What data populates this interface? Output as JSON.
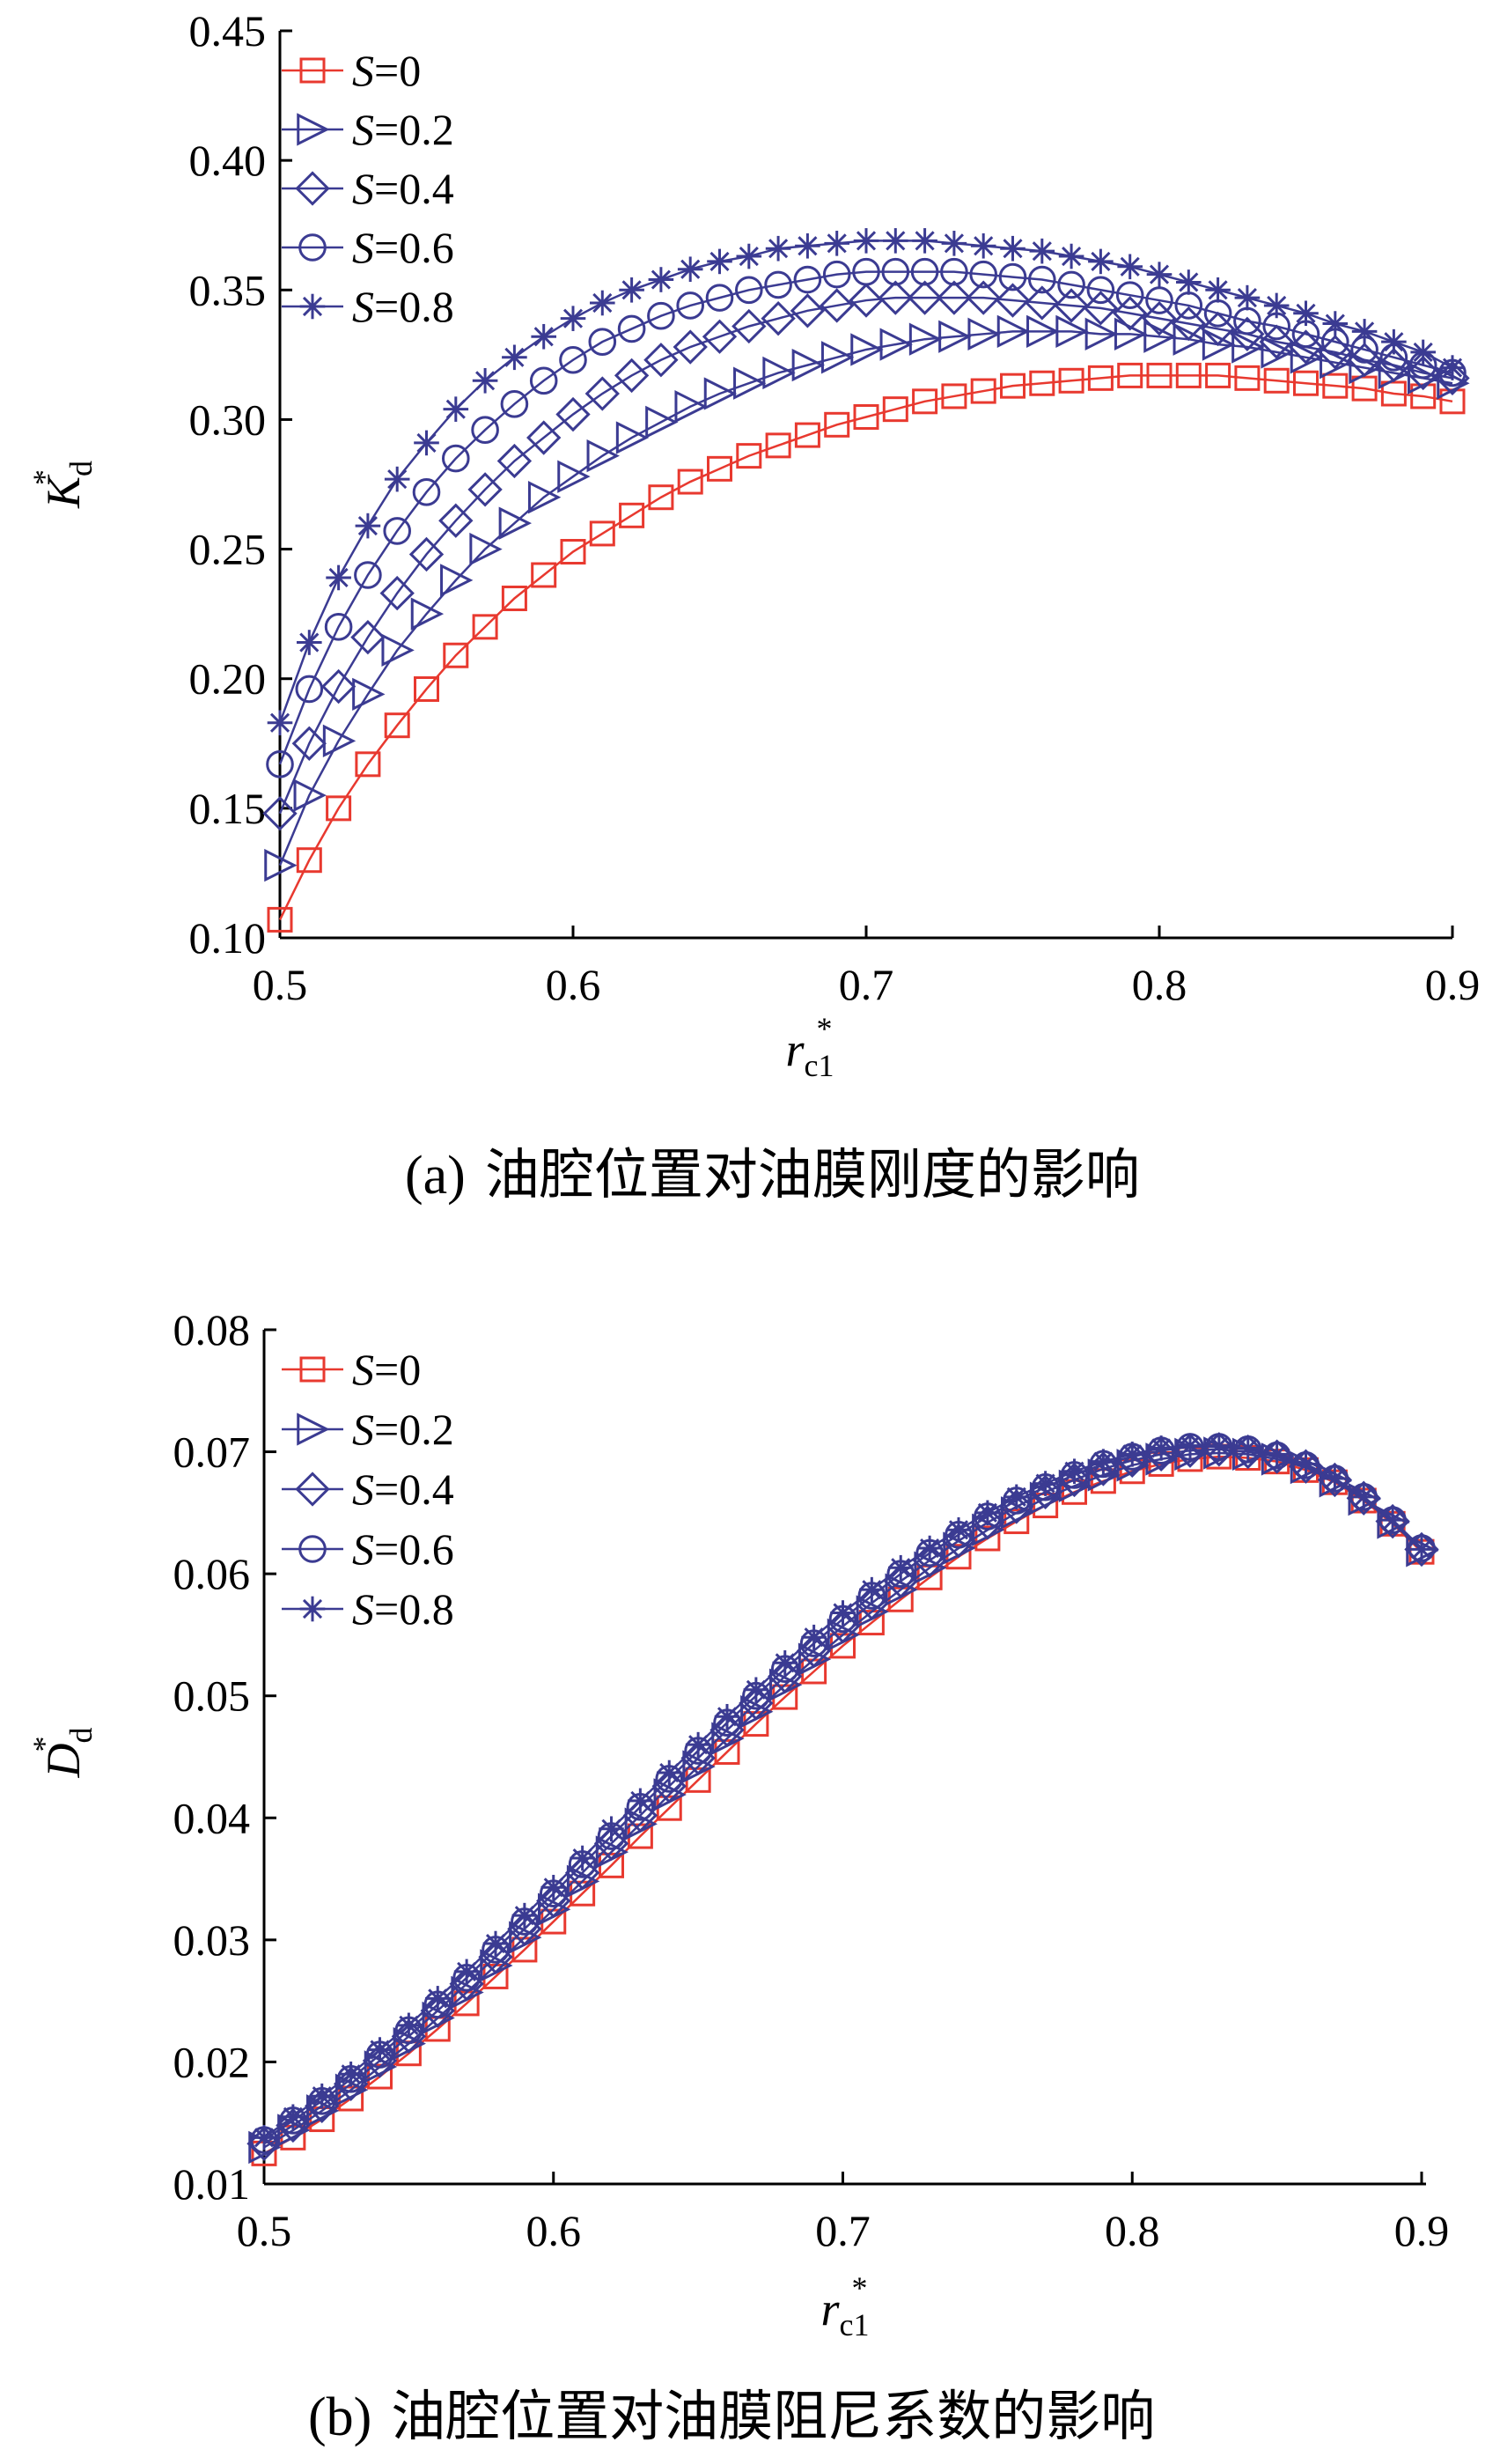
{
  "chart_data": [
    {
      "type": "line",
      "panel_label": "(a)",
      "caption": "油腔位置对油膜刚度的影响",
      "xlabel": {
        "symbol": "r",
        "sub": "c1",
        "sup": "*"
      },
      "ylabel": {
        "symbol": "K",
        "sub": "d",
        "sup": "*"
      },
      "xlim": [
        0.5,
        0.9
      ],
      "ylim": [
        0.1,
        0.45
      ],
      "xticks": [
        "0.5",
        "0.6",
        "0.7",
        "0.8",
        "0.9"
      ],
      "yticks": [
        "0.10",
        "0.15",
        "0.20",
        "0.25",
        "0.30",
        "0.35",
        "0.40",
        "0.45"
      ],
      "grid": false,
      "legend_position": "top-left",
      "x": [
        0.5,
        0.51,
        0.52,
        0.53,
        0.54,
        0.55,
        0.56,
        0.57,
        0.58,
        0.59,
        0.6,
        0.61,
        0.62,
        0.63,
        0.64,
        0.65,
        0.66,
        0.67,
        0.68,
        0.69,
        0.7,
        0.71,
        0.72,
        0.73,
        0.74,
        0.75,
        0.76,
        0.77,
        0.78,
        0.79,
        0.8,
        0.81,
        0.82,
        0.83,
        0.84,
        0.85,
        0.86,
        0.87,
        0.88,
        0.89,
        0.9
      ],
      "series": [
        {
          "name": "S=0",
          "label_var": "S",
          "label_val": "=0",
          "marker": "square",
          "color": "#e8392f",
          "values": [
            0.107,
            0.13,
            0.15,
            0.167,
            0.182,
            0.196,
            0.209,
            0.22,
            0.231,
            0.24,
            0.249,
            0.256,
            0.263,
            0.27,
            0.276,
            0.281,
            0.286,
            0.29,
            0.294,
            0.298,
            0.301,
            0.304,
            0.307,
            0.309,
            0.311,
            0.313,
            0.314,
            0.315,
            0.316,
            0.317,
            0.317,
            0.317,
            0.317,
            0.316,
            0.315,
            0.314,
            0.313,
            0.312,
            0.31,
            0.309,
            0.307
          ]
        },
        {
          "name": "S=0.2",
          "label_var": "S",
          "label_val": "=0.2",
          "marker": "triangle-right",
          "color": "#3b3b92",
          "values": [
            0.128,
            0.155,
            0.176,
            0.194,
            0.211,
            0.225,
            0.238,
            0.25,
            0.26,
            0.27,
            0.278,
            0.286,
            0.293,
            0.299,
            0.305,
            0.31,
            0.314,
            0.318,
            0.321,
            0.324,
            0.327,
            0.329,
            0.331,
            0.332,
            0.333,
            0.334,
            0.334,
            0.334,
            0.333,
            0.333,
            0.332,
            0.331,
            0.329,
            0.328,
            0.326,
            0.324,
            0.322,
            0.32,
            0.318,
            0.316,
            0.314
          ]
        },
        {
          "name": "S=0.4",
          "label_var": "S",
          "label_val": "=0.4",
          "marker": "diamond",
          "color": "#3b3b92",
          "values": [
            0.148,
            0.175,
            0.197,
            0.216,
            0.233,
            0.248,
            0.261,
            0.273,
            0.284,
            0.293,
            0.302,
            0.31,
            0.317,
            0.323,
            0.328,
            0.332,
            0.336,
            0.339,
            0.342,
            0.344,
            0.346,
            0.347,
            0.347,
            0.347,
            0.347,
            0.346,
            0.345,
            0.344,
            0.343,
            0.341,
            0.339,
            0.337,
            0.335,
            0.333,
            0.33,
            0.328,
            0.326,
            0.323,
            0.321,
            0.318,
            0.316
          ]
        },
        {
          "name": "S=0.6",
          "label_var": "S",
          "label_val": "=0.6",
          "marker": "circle",
          "color": "#3b3b92",
          "values": [
            0.167,
            0.196,
            0.22,
            0.24,
            0.257,
            0.272,
            0.285,
            0.296,
            0.306,
            0.315,
            0.323,
            0.33,
            0.335,
            0.34,
            0.344,
            0.347,
            0.35,
            0.352,
            0.354,
            0.356,
            0.357,
            0.357,
            0.357,
            0.357,
            0.356,
            0.355,
            0.354,
            0.352,
            0.35,
            0.348,
            0.346,
            0.344,
            0.341,
            0.338,
            0.336,
            0.333,
            0.33,
            0.327,
            0.324,
            0.321,
            0.318
          ]
        },
        {
          "name": "S=0.8",
          "label_var": "S",
          "label_val": "=0.8",
          "marker": "asterisk",
          "color": "#3b3b92",
          "values": [
            0.183,
            0.214,
            0.239,
            0.259,
            0.277,
            0.291,
            0.304,
            0.315,
            0.324,
            0.332,
            0.339,
            0.345,
            0.35,
            0.354,
            0.358,
            0.361,
            0.363,
            0.366,
            0.367,
            0.368,
            0.369,
            0.369,
            0.369,
            0.368,
            0.367,
            0.366,
            0.365,
            0.363,
            0.361,
            0.359,
            0.356,
            0.353,
            0.35,
            0.347,
            0.344,
            0.341,
            0.337,
            0.334,
            0.33,
            0.326,
            0.32
          ]
        }
      ]
    },
    {
      "type": "line",
      "panel_label": "(b)",
      "caption": "油腔位置对油膜阻尼系数的影响",
      "xlabel": {
        "symbol": "r",
        "sub": "c1",
        "sup": "*"
      },
      "ylabel": {
        "symbol": "D",
        "sub": "d",
        "sup": "*"
      },
      "xlim": [
        0.5,
        0.9
      ],
      "ylim": [
        0.01,
        0.08
      ],
      "xticks": [
        "0.5",
        "0.6",
        "0.7",
        "0.8",
        "0.9"
      ],
      "yticks": [
        "0.01",
        "0.02",
        "0.03",
        "0.04",
        "0.05",
        "0.06",
        "0.07",
        "0.08"
      ],
      "grid": false,
      "legend_position": "top-left",
      "x": [
        0.5,
        0.51,
        0.52,
        0.53,
        0.54,
        0.55,
        0.56,
        0.57,
        0.58,
        0.59,
        0.6,
        0.61,
        0.62,
        0.63,
        0.64,
        0.65,
        0.66,
        0.67,
        0.68,
        0.69,
        0.7,
        0.71,
        0.72,
        0.73,
        0.74,
        0.75,
        0.76,
        0.77,
        0.78,
        0.79,
        0.8,
        0.81,
        0.82,
        0.83,
        0.84,
        0.85,
        0.86,
        0.87,
        0.88,
        0.89,
        0.9
      ],
      "series": [
        {
          "name": "S=0",
          "label_var": "S",
          "label_val": "=0",
          "marker": "square",
          "color": "#e8392f",
          "values": [
            0.0125,
            0.0138,
            0.0153,
            0.017,
            0.0188,
            0.0207,
            0.0227,
            0.0248,
            0.027,
            0.0292,
            0.0315,
            0.0338,
            0.0361,
            0.0385,
            0.0408,
            0.0431,
            0.0454,
            0.0477,
            0.0499,
            0.052,
            0.0541,
            0.056,
            0.0579,
            0.0597,
            0.0614,
            0.0629,
            0.0643,
            0.0656,
            0.0667,
            0.0676,
            0.0684,
            0.069,
            0.0694,
            0.0696,
            0.0695,
            0.0692,
            0.0685,
            0.0675,
            0.066,
            0.0641,
            0.0618
          ]
        },
        {
          "name": "S=0.2",
          "label_var": "S",
          "label_val": "=0.2",
          "marker": "triangle-right",
          "color": "#3b3b92",
          "values": [
            0.013,
            0.0144,
            0.016,
            0.0177,
            0.0196,
            0.0215,
            0.0236,
            0.0257,
            0.0279,
            0.0302,
            0.0325,
            0.0348,
            0.0372,
            0.0395,
            0.0419,
            0.0442,
            0.0465,
            0.0487,
            0.0509,
            0.053,
            0.055,
            0.0569,
            0.0587,
            0.0605,
            0.0621,
            0.0636,
            0.065,
            0.0662,
            0.0672,
            0.0681,
            0.0689,
            0.0694,
            0.0698,
            0.0699,
            0.0698,
            0.0694,
            0.0687,
            0.0676,
            0.0661,
            0.0642,
            0.0619
          ]
        },
        {
          "name": "S=0.4",
          "label_var": "S",
          "label_val": "=0.4",
          "marker": "diamond",
          "color": "#3b3b92",
          "values": [
            0.0133,
            0.0148,
            0.0164,
            0.0182,
            0.0201,
            0.0221,
            0.0242,
            0.0264,
            0.0286,
            0.0309,
            0.0332,
            0.0355,
            0.0379,
            0.0402,
            0.0426,
            0.0449,
            0.0472,
            0.0494,
            0.0516,
            0.0537,
            0.0557,
            0.0576,
            0.0594,
            0.0611,
            0.0627,
            0.0642,
            0.0655,
            0.0667,
            0.0677,
            0.0686,
            0.0693,
            0.0698,
            0.0701,
            0.0702,
            0.07,
            0.0696,
            0.0688,
            0.0677,
            0.0662,
            0.0643,
            0.062
          ]
        },
        {
          "name": "S=0.6",
          "label_var": "S",
          "label_val": "=0.6",
          "marker": "circle",
          "color": "#3b3b92",
          "values": [
            0.0136,
            0.0152,
            0.0168,
            0.0186,
            0.0206,
            0.0226,
            0.0247,
            0.0269,
            0.0292,
            0.0315,
            0.0338,
            0.0362,
            0.0385,
            0.0409,
            0.0432,
            0.0455,
            0.0478,
            0.05,
            0.0522,
            0.0543,
            0.0563,
            0.0582,
            0.06,
            0.0617,
            0.0632,
            0.0647,
            0.066,
            0.0671,
            0.0681,
            0.069,
            0.0696,
            0.0701,
            0.0704,
            0.0704,
            0.0702,
            0.0697,
            0.0689,
            0.0678,
            0.0663,
            0.0644,
            0.0621
          ]
        },
        {
          "name": "S=0.8",
          "label_var": "S",
          "label_val": "=0.8",
          "marker": "asterisk",
          "color": "#3b3b92",
          "values": [
            0.0138,
            0.0155,
            0.0172,
            0.019,
            0.021,
            0.023,
            0.0252,
            0.0274,
            0.0297,
            0.032,
            0.0343,
            0.0367,
            0.0391,
            0.0414,
            0.0437,
            0.046,
            0.0483,
            0.0505,
            0.0527,
            0.0548,
            0.0568,
            0.0587,
            0.0605,
            0.0621,
            0.0636,
            0.065,
            0.0663,
            0.0674,
            0.0684,
            0.0692,
            0.0698,
            0.0703,
            0.0705,
            0.0705,
            0.0703,
            0.0698,
            0.069,
            0.0678,
            0.0663,
            0.0644,
            0.062
          ]
        }
      ]
    }
  ]
}
